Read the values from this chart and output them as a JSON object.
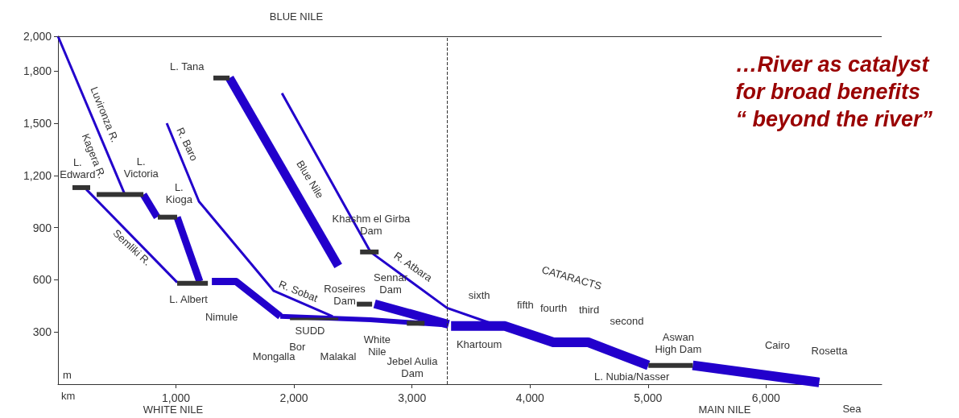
{
  "chart_data": {
    "type": "line",
    "title": "…River as catalyst\nfor broad benefits\n“ beyond the river”",
    "xlabel": "km",
    "ylabel": "m",
    "xlim": [
      0,
      6980
    ],
    "xticks": [
      {
        "value": 1000,
        "label": "1,000"
      },
      {
        "value": 2000,
        "label": "2,000"
      },
      {
        "value": 3000,
        "label": "3,000"
      },
      {
        "value": 4000,
        "label": "4,000"
      },
      {
        "value": 5000,
        "label": "5,000"
      },
      {
        "value": 6000,
        "label": "6,000"
      }
    ],
    "ylim": [
      0,
      2000
    ],
    "yticks": [
      300,
      600,
      900,
      {
        "value": 1200,
        "label": "1,200"
      },
      {
        "value": 1500,
        "label": "1,500"
      },
      {
        "value": 1800,
        "label": "1,800"
      },
      {
        "value": 2000,
        "label": "2,000"
      }
    ],
    "grid": false,
    "marker": "none",
    "ref_lines": [
      {
        "axis": "x",
        "value": 3300,
        "line_style": "dashed",
        "color": "#333333"
      },
      {
        "axis": "y",
        "value": 2000,
        "line_style": "solid",
        "color": "#333333"
      }
    ],
    "series": [
      {
        "color": "#2200cc",
        "x": [
          0,
          567
        ],
        "values": [
          2000,
          1090
        ]
      },
      {
        "color": "#333333",
        "x": [
          328,
          724
        ],
        "values": [
          1090,
          1090
        ]
      },
      {
        "color": "#2200cc",
        "x": [
          724,
          840
        ],
        "values": [
          1090,
          960
        ]
      },
      {
        "color": "#333333",
        "x": [
          846,
          1010
        ],
        "values": [
          960,
          960
        ]
      },
      {
        "color": "#2200cc",
        "x": [
          1010,
          1201
        ],
        "values": [
          960,
          590
        ]
      },
      {
        "color": "#333333",
        "x": [
          1010,
          1270
        ],
        "values": [
          580,
          580
        ]
      },
      {
        "color": "#333333",
        "x": [
          123,
          273
        ],
        "values": [
          1130,
          1130
        ]
      },
      {
        "color": "#2200cc",
        "x": [
          240,
          1010
        ],
        "values": [
          1120,
          585
        ]
      },
      {
        "color": "#2200cc",
        "x": [
          1304,
          1509,
          1884
        ],
        "values": [
          590,
          590,
          390
        ]
      },
      {
        "color": "#2200cc",
        "x": [
          1884,
          2648,
          3297
        ],
        "values": [
          390,
          370,
          340
        ]
      },
      {
        "color": "#333333",
        "x": [
          1966,
          2375
        ],
        "values": [
          375,
          375
        ]
      },
      {
        "color": "#333333",
        "x": [
          2956,
          3106
        ],
        "values": [
          350,
          350
        ]
      },
      {
        "color": "#2200cc",
        "x": [
          922,
          1195,
          1829,
          2328
        ],
        "values": [
          1500,
          1050,
          536,
          390
        ]
      },
      {
        "color": "#333333",
        "x": [
          1317,
          1454
        ],
        "values": [
          1760,
          1760
        ]
      },
      {
        "color": "#2200cc",
        "x": [
          1454,
          2375
        ],
        "values": [
          1760,
          679
        ]
      },
      {
        "color": "#333333",
        "x": [
          2532,
          2662
        ],
        "values": [
          460,
          460
        ]
      },
      {
        "color": "#2200cc",
        "x": [
          2683,
          3311
        ],
        "values": [
          462,
          344
        ]
      },
      {
        "color": "#2200cc",
        "x": [
          1898,
          2648,
          3297,
          3652
        ],
        "values": [
          1672,
          760,
          438,
          354
        ]
      },
      {
        "color": "#333333",
        "x": [
          2560,
          2717
        ],
        "values": [
          760,
          760
        ]
      },
      {
        "color": "#2200cc",
        "x": [
          3331,
          3788,
          4198,
          4491,
          5003
        ],
        "values": [
          334,
          334,
          241,
          241,
          108
        ]
      },
      {
        "color": "#333333",
        "x": [
          5003,
          5379
        ],
        "values": [
          108,
          108
        ]
      },
      {
        "color": "#2200cc",
        "x": [
          5379,
          6451
        ],
        "values": [
          108,
          10
        ]
      }
    ],
    "annotations": [
      {
        "text": "L.\nEdward",
        "x": 200,
        "y": 1130
      },
      {
        "text": "L.\nVictoria",
        "x": 650,
        "y": 1090
      },
      {
        "text": "L.\nKioga",
        "x": 930,
        "y": 960
      },
      {
        "text": "L. Albert",
        "x": 1140,
        "y": 580
      },
      {
        "text": "L. Tana",
        "x": 1380,
        "y": 1760
      },
      {
        "text": "Nimule",
        "x": 1509,
        "y": 590
      },
      {
        "text": "Bor",
        "x": 1960,
        "y": 375
      },
      {
        "text": "SUDD",
        "x": 2170,
        "y": 375
      },
      {
        "text": "White\nNile",
        "x": 2650,
        "y": 370
      },
      {
        "text": "Sennar\nDam",
        "x": 2600,
        "y": 460
      },
      {
        "text": "Khashm el Girba\nDam",
        "x": 2640,
        "y": 760
      },
      {
        "text": "Khartoum",
        "x": 3310,
        "y": 340
      },
      {
        "text": "sixth",
        "x": 3570,
        "y": 334
      },
      {
        "text": "fifth",
        "x": 3960,
        "y": 300
      },
      {
        "text": "fourth",
        "x": 4200,
        "y": 241
      },
      {
        "text": "third",
        "x": 4500,
        "y": 241
      },
      {
        "text": "second",
        "x": 4820,
        "y": 170
      },
      {
        "text": "Aswan\nHigh Dam",
        "x": 5379,
        "y": 108
      },
      {
        "text": "L. Nubia/Nasser",
        "x": 5190,
        "y": 108
      },
      {
        "text": "Cairo",
        "x": 6096,
        "y": 60
      },
      {
        "text": "Luvironza R.",
        "x": 300,
        "y": 1550
      },
      {
        "text": "Kagera R.",
        "x": 400,
        "y": 1330
      },
      {
        "text": "Semliki R.",
        "x": 600,
        "y": 860
      },
      {
        "text": "R. Baro",
        "x": 1000,
        "y": 1380
      },
      {
        "text": "Blue Nile",
        "x": 2000,
        "y": 1150
      },
      {
        "text": "R. Sobat",
        "x": 2050,
        "y": 470
      },
      {
        "text": "R. Atbara",
        "x": 2900,
        "y": 620
      },
      "Mongalla",
      "Malakal",
      "Jebel Aulia\nDam",
      "Roseires\nDam",
      "Rosetta",
      "BLUE NILE",
      "WHITE NILE",
      "MAIN NILE",
      "CATARACTS",
      "Sea"
    ]
  }
}
